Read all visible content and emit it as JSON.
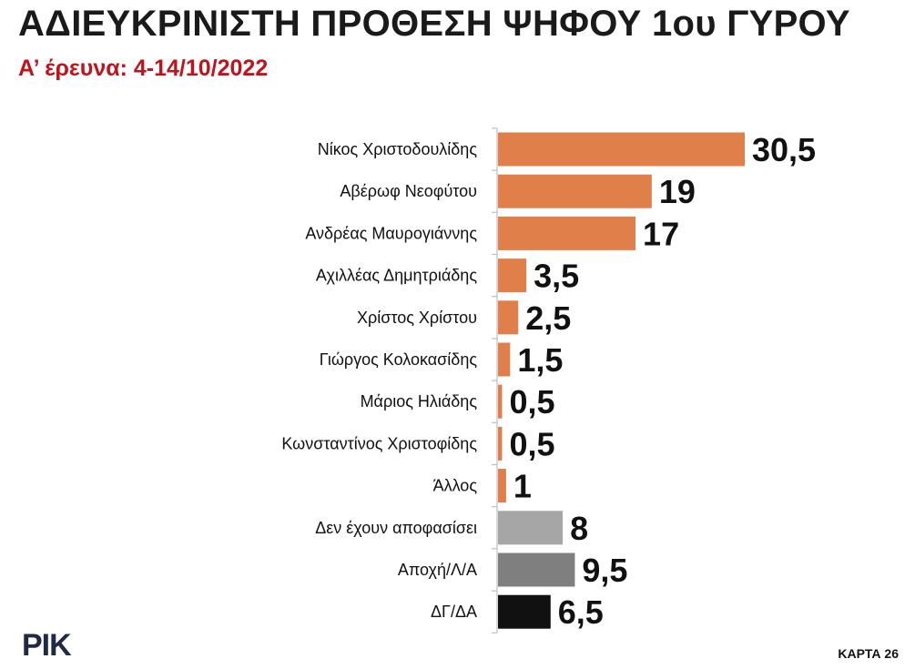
{
  "header": {
    "title": "ΑΔΙΕΥΚΡΙΝΙΣΤΗ ΠΡΟΘΕΣΗ ΨΗΦΟΥ 1ου ΓΥΡΟΥ",
    "subtitle": "Α’ έρευνα: 4-14/10/2022"
  },
  "footer": {
    "logo_text": "ΡΙΚ",
    "map_label": "ΚΑΡΤΑ 26"
  },
  "chart_data": {
    "type": "bar",
    "orientation": "horizontal",
    "title": "ΑΔΙΕΥΚΡΙΝΙΣΤΗ ΠΡΟΘΕΣΗ ΨΗΦΟΥ 1ου ΓΥΡΟΥ",
    "subtitle": "Α’ έρευνα: 4-14/10/2022",
    "xlabel": "",
    "ylabel": "",
    "xlim": [
      0,
      30.5
    ],
    "grid": false,
    "legend": "none",
    "categories": [
      "Νίκος Χριστοδουλίδης",
      "Αβέρωφ Νεοφύτου",
      "Ανδρέας Μαυρογιάννης",
      "Αχιλλέας Δημητριάδης",
      "Χρίστος Χρίστου",
      "Γιώργος Κολοκασίδης",
      "Μάριος Ηλιάδης",
      "Κωνσταντίνος Χριστοφίδης",
      "Άλλος",
      "Δεν έχουν αποφασίσει",
      "Αποχή/Λ/Α",
      "ΔΓ/ΔΑ"
    ],
    "values": [
      30.5,
      19,
      17,
      3.5,
      2.5,
      1.5,
      0.5,
      0.5,
      1,
      8,
      9.5,
      6.5
    ],
    "value_labels": [
      "30,5",
      "19",
      "17",
      "3,5",
      "2,5",
      "1,5",
      "0,5",
      "0,5",
      "1",
      "8",
      "9,5",
      "6,5"
    ],
    "colors": [
      "#e07f4a",
      "#e07f4a",
      "#e07f4a",
      "#e07f4a",
      "#e07f4a",
      "#e07f4a",
      "#e07f4a",
      "#e07f4a",
      "#e07f4a",
      "#a6a6a6",
      "#7f7f7f",
      "#111111"
    ],
    "axis_color": "#bfbfbf"
  }
}
